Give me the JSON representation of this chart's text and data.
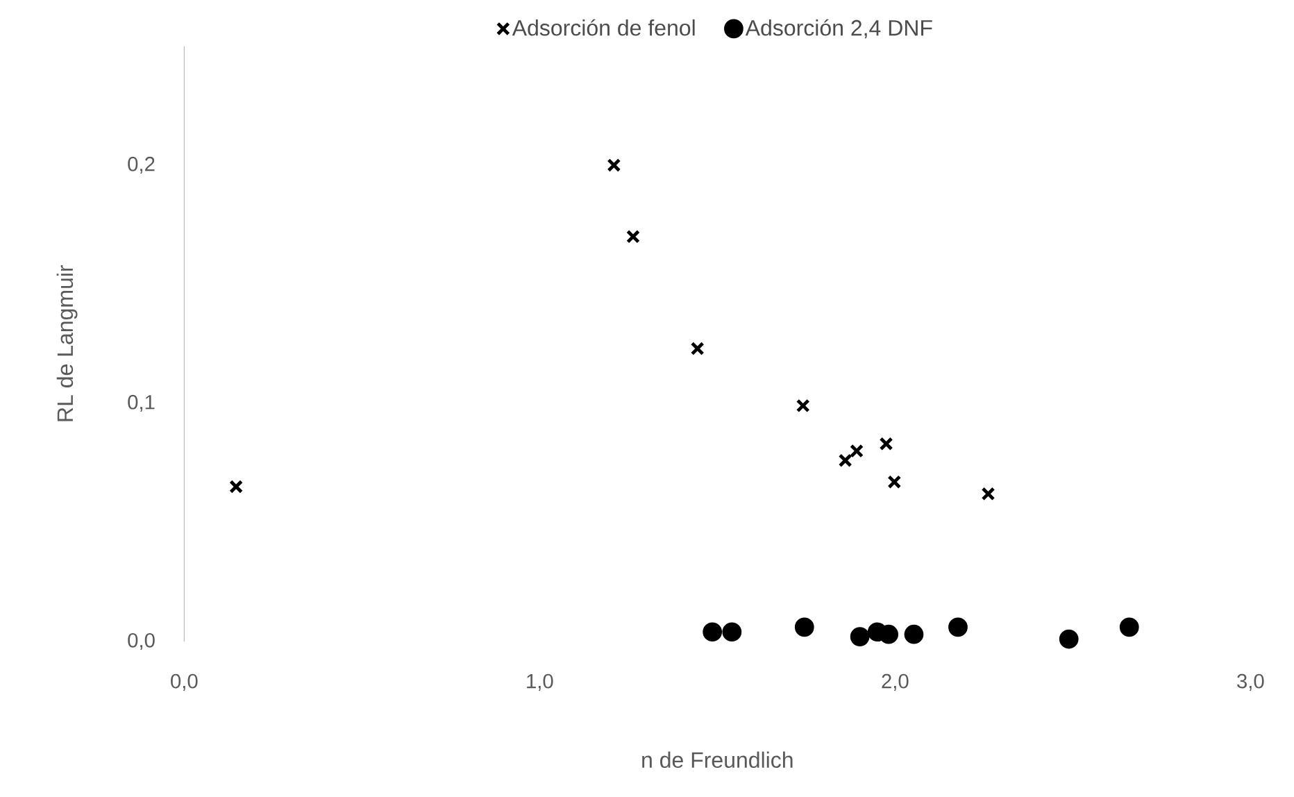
{
  "chart_data": {
    "type": "scatter",
    "xlabel": "n de Freundlich",
    "ylabel": "RL de Langmuir",
    "series": [
      {
        "name": "Adsorción de fenol",
        "color": "#000000",
        "marker": "cross",
        "x": [
          0.146,
          1.209,
          1.263,
          1.444,
          1.741,
          1.86,
          1.892,
          1.975,
          1.998,
          2.262
        ],
        "values": [
          0.065,
          0.2,
          0.17,
          0.123,
          0.099,
          0.076,
          0.08,
          0.083,
          0.067,
          0.062
        ]
      },
      {
        "name": "Adsorción 2,4 DNF",
        "color": "#000000",
        "marker": "circle",
        "x": [
          1.486,
          1.541,
          1.745,
          1.901,
          1.95,
          1.982,
          2.053,
          2.177,
          2.489,
          2.659
        ],
        "values": [
          0.004,
          0.004,
          0.006,
          0.002,
          0.004,
          0.003,
          0.003,
          0.006,
          0.001,
          0.006
        ]
      }
    ],
    "xlim": [
      0,
      3
    ],
    "ylim": [
      0,
      0.25
    ],
    "xticks": [
      {
        "value": 0,
        "label": "0,0"
      },
      {
        "value": 1,
        "label": "1,0"
      },
      {
        "value": 2,
        "label": "2,0"
      },
      {
        "value": 3,
        "label": "3,0"
      }
    ],
    "yticks": [
      {
        "value": 0,
        "label": "0,0"
      },
      {
        "value": 0.1,
        "label": "0,1"
      },
      {
        "value": 0.2,
        "label": "0,2"
      }
    ],
    "grid": false,
    "legend": "top"
  }
}
